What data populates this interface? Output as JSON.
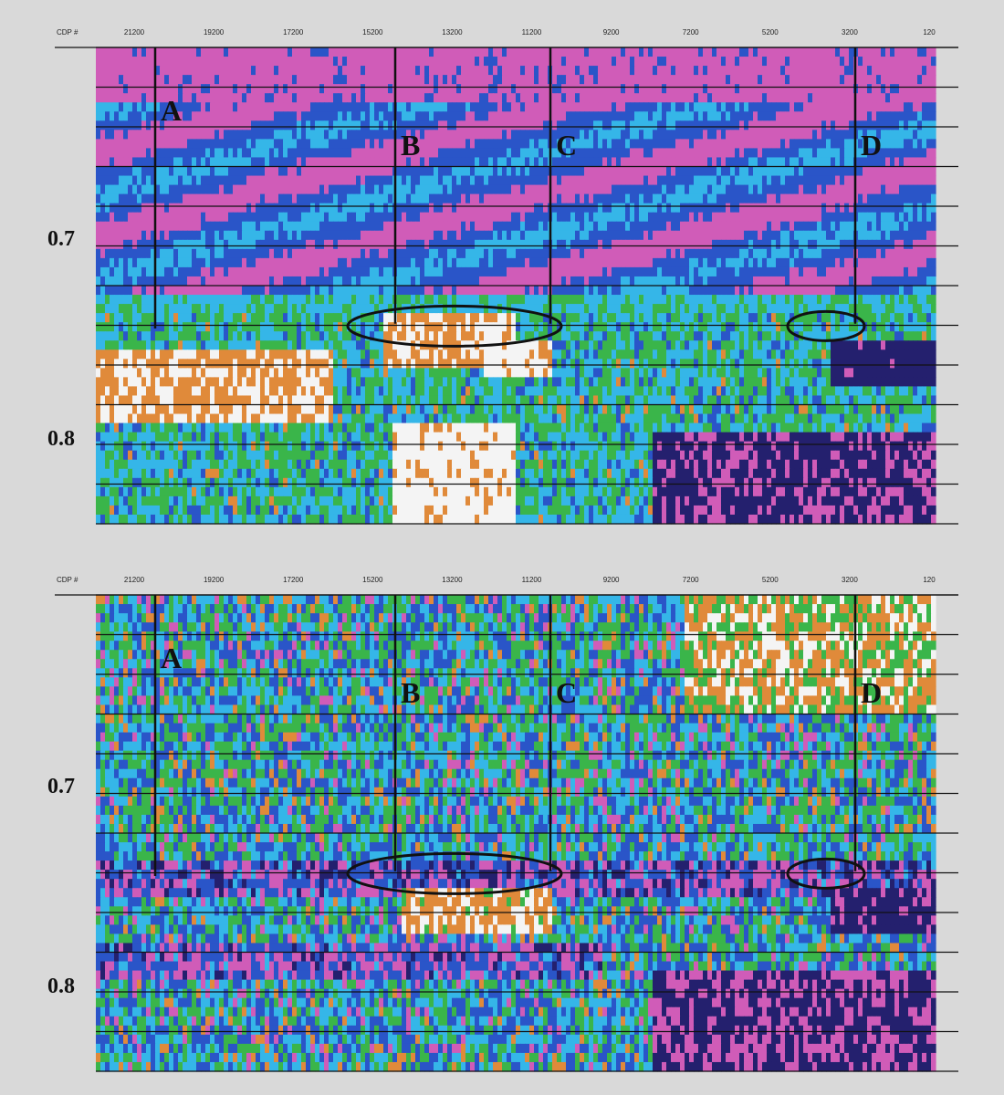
{
  "chart_data": [
    {
      "type": "heatmap",
      "x_axis": {
        "name": "CDP #",
        "ticks": [
          "21200",
          "19200",
          "17200",
          "15200",
          "13200",
          "11200",
          "9200",
          "7200",
          "5200",
          "3200",
          "120"
        ]
      },
      "y_axis": {
        "ticks": [
          "0.7",
          "0.8"
        ]
      },
      "wells": [
        "A",
        "B",
        "C",
        "D"
      ],
      "anomaly_ellipses": 2,
      "palette": [
        "#f4f4f4",
        "#e08a3a",
        "#3ab54a",
        "#35b6e8",
        "#2a55c8",
        "#d05cb8",
        "#24206e"
      ]
    },
    {
      "type": "heatmap",
      "x_axis": {
        "name": "CDP #",
        "ticks": [
          "21200",
          "19200",
          "17200",
          "15200",
          "13200",
          "11200",
          "9200",
          "7200",
          "5200",
          "3200",
          "120"
        ]
      },
      "y_axis": {
        "ticks": [
          "0.7",
          "0.8"
        ]
      },
      "wells": [
        "A",
        "B",
        "C",
        "D"
      ],
      "anomaly_ellipses": 2,
      "palette": [
        "#f4f4f4",
        "#e08a3a",
        "#3ab54a",
        "#35b6e8",
        "#2a55c8",
        "#d05cb8",
        "#24206e"
      ]
    }
  ]
}
